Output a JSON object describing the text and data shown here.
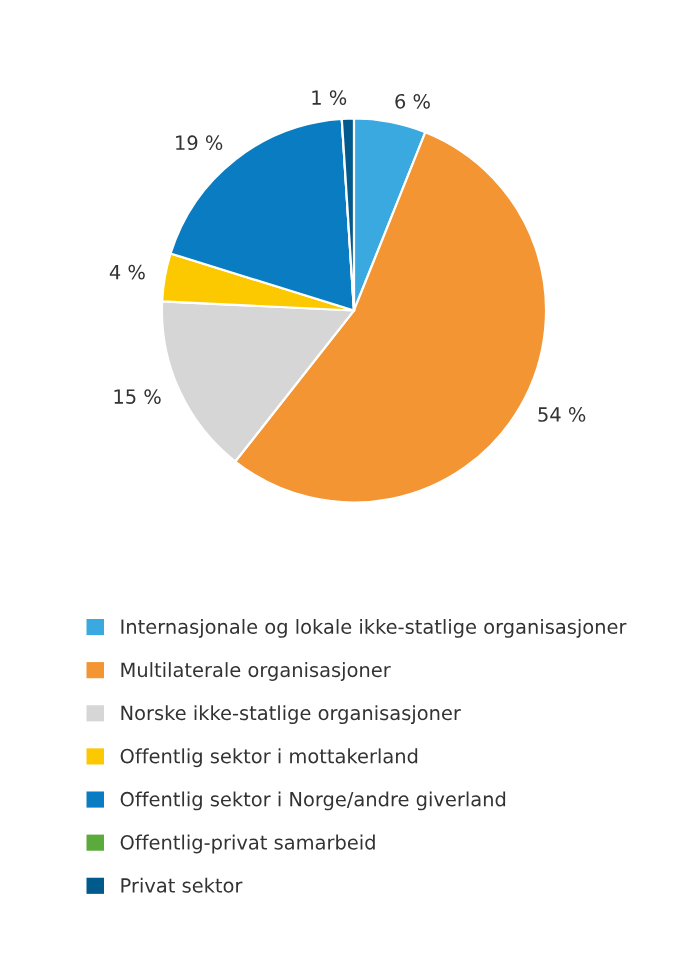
{
  "chart_data": {
    "type": "pie",
    "categories": [
      "Internasjonale og lokale ikke-statlige organisasjoner",
      "Multilaterale organisasjoner",
      "Norske ikke-statlige organisasjoner",
      "Offentlig sektor i mottakerland",
      "Offentlig sektor i Norge/andre giverland",
      "Offentlig-privat samarbeid",
      "Privat sektor"
    ],
    "values": [
      6,
      54,
      15,
      4,
      19,
      0,
      1
    ],
    "value_labels": [
      "6 %",
      "54 %",
      "15 %",
      "4 %",
      "19 %",
      null,
      "1 %"
    ],
    "colors": [
      "#3aa9e0",
      "#f39532",
      "#d6d6d6",
      "#fcc900",
      "#0a7dc2",
      "#5aab3c",
      "#005b8c"
    ],
    "legend": "bottom"
  }
}
